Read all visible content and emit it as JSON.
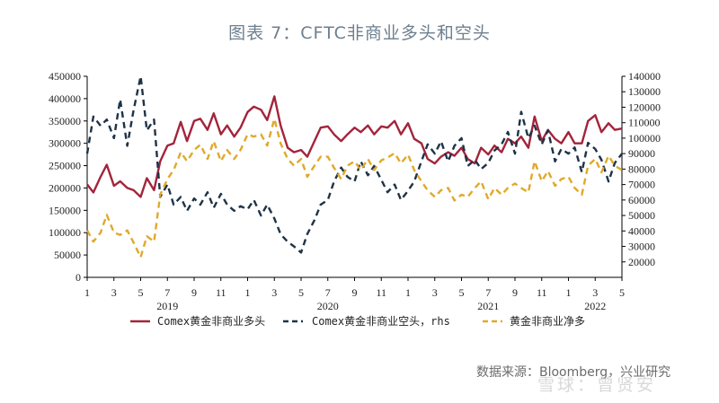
{
  "title": "图表 7：CFTC非商业多头和空头",
  "source": "数据来源：Bloomberg，兴业研究",
  "watermark": "雪球：曾贤安",
  "chart_data": {
    "type": "line",
    "x_range": [
      "2019-01",
      "2022-05"
    ],
    "x_ticks": [
      {
        "label": "1",
        "month": "2019-01"
      },
      {
        "label": "3",
        "month": "2019-03"
      },
      {
        "label": "5",
        "month": "2019-05"
      },
      {
        "label": "7",
        "month": "2019-07"
      },
      {
        "label": "9",
        "month": "2019-09"
      },
      {
        "label": "11",
        "month": "2019-11"
      },
      {
        "label": "1",
        "month": "2020-01"
      },
      {
        "label": "3",
        "month": "2020-03"
      },
      {
        "label": "5",
        "month": "2020-05"
      },
      {
        "label": "7",
        "month": "2020-07"
      },
      {
        "label": "9",
        "month": "2020-09"
      },
      {
        "label": "11",
        "month": "2020-11"
      },
      {
        "label": "1",
        "month": "2021-01"
      },
      {
        "label": "3",
        "month": "2021-03"
      },
      {
        "label": "5",
        "month": "2021-05"
      },
      {
        "label": "7",
        "month": "2021-07"
      },
      {
        "label": "9",
        "month": "2021-09"
      },
      {
        "label": "11",
        "month": "2021-11"
      },
      {
        "label": "1",
        "month": "2022-01"
      },
      {
        "label": "3",
        "month": "2022-03"
      },
      {
        "label": "5",
        "month": "2022-05"
      }
    ],
    "year_labels": [
      {
        "label": "2019",
        "month": "2019-07"
      },
      {
        "label": "2020",
        "month": "2020-07"
      },
      {
        "label": "2021",
        "month": "2021-07"
      },
      {
        "label": "2022",
        "month": "2022-03"
      }
    ],
    "y_left": {
      "min": 0,
      "max": 450000,
      "ticks": [
        0,
        50000,
        100000,
        150000,
        200000,
        250000,
        300000,
        350000,
        400000,
        450000
      ]
    },
    "y_right": {
      "min": 10000,
      "max": 140000,
      "ticks": [
        20000,
        30000,
        40000,
        50000,
        60000,
        70000,
        80000,
        90000,
        100000,
        110000,
        120000,
        130000,
        140000
      ]
    },
    "legend_position": "bottom",
    "grid": false,
    "series": [
      {
        "name": "Comex黄金非商业多头",
        "axis": "left",
        "color": "#a3243b",
        "style": "solid",
        "points": [
          [
            "2019-01",
            208000
          ],
          [
            "2019-01-15",
            190000
          ],
          [
            "2019-02",
            225000
          ],
          [
            "2019-02-15",
            252000
          ],
          [
            "2019-03",
            205000
          ],
          [
            "2019-03-15",
            215000
          ],
          [
            "2019-04",
            200000
          ],
          [
            "2019-04-15",
            195000
          ],
          [
            "2019-05",
            180000
          ],
          [
            "2019-05-15",
            222000
          ],
          [
            "2019-06",
            195000
          ],
          [
            "2019-06-15",
            260000
          ],
          [
            "2019-07",
            295000
          ],
          [
            "2019-07-15",
            300000
          ],
          [
            "2019-08",
            348000
          ],
          [
            "2019-08-15",
            305000
          ],
          [
            "2019-09",
            350000
          ],
          [
            "2019-09-15",
            355000
          ],
          [
            "2019-10",
            330000
          ],
          [
            "2019-10-15",
            367000
          ],
          [
            "2019-11",
            320000
          ],
          [
            "2019-11-15",
            340000
          ],
          [
            "2019-12",
            315000
          ],
          [
            "2019-12-15",
            335000
          ],
          [
            "2020-01",
            370000
          ],
          [
            "2020-01-15",
            382000
          ],
          [
            "2020-02",
            375000
          ],
          [
            "2020-02-15",
            352000
          ],
          [
            "2020-03",
            405000
          ],
          [
            "2020-03-15",
            340000
          ],
          [
            "2020-04",
            290000
          ],
          [
            "2020-04-15",
            280000
          ],
          [
            "2020-05",
            285000
          ],
          [
            "2020-05-15",
            270000
          ],
          [
            "2020-06",
            305000
          ],
          [
            "2020-06-15",
            335000
          ],
          [
            "2020-07",
            338000
          ],
          [
            "2020-07-15",
            320000
          ],
          [
            "2020-08",
            305000
          ],
          [
            "2020-08-15",
            320000
          ],
          [
            "2020-09",
            335000
          ],
          [
            "2020-09-15",
            325000
          ],
          [
            "2020-10",
            340000
          ],
          [
            "2020-10-15",
            320000
          ],
          [
            "2020-11",
            338000
          ],
          [
            "2020-11-15",
            335000
          ],
          [
            "2020-12",
            350000
          ],
          [
            "2020-12-15",
            320000
          ],
          [
            "2021-01",
            345000
          ],
          [
            "2021-01-15",
            310000
          ],
          [
            "2021-02",
            300000
          ],
          [
            "2021-02-15",
            265000
          ],
          [
            "2021-03",
            255000
          ],
          [
            "2021-03-15",
            270000
          ],
          [
            "2021-04",
            280000
          ],
          [
            "2021-04-15",
            272000
          ],
          [
            "2021-05",
            290000
          ],
          [
            "2021-05-15",
            265000
          ],
          [
            "2021-06",
            255000
          ],
          [
            "2021-06-15",
            290000
          ],
          [
            "2021-07",
            275000
          ],
          [
            "2021-07-15",
            295000
          ],
          [
            "2021-08",
            280000
          ],
          [
            "2021-08-15",
            310000
          ],
          [
            "2021-09",
            300000
          ],
          [
            "2021-09-15",
            315000
          ],
          [
            "2021-10",
            290000
          ],
          [
            "2021-10-15",
            360000
          ],
          [
            "2021-11",
            305000
          ],
          [
            "2021-11-15",
            330000
          ],
          [
            "2021-12",
            310000
          ],
          [
            "2021-12-15",
            300000
          ],
          [
            "2022-01",
            325000
          ],
          [
            "2022-01-15",
            300000
          ],
          [
            "2022-02",
            300000
          ],
          [
            "2022-02-15",
            350000
          ],
          [
            "2022-03",
            363000
          ],
          [
            "2022-03-15",
            325000
          ],
          [
            "2022-04",
            345000
          ],
          [
            "2022-04-15",
            330000
          ],
          [
            "2022-05",
            333000
          ]
        ]
      },
      {
        "name": "Comex黄金非商业空头，rhs",
        "axis": "right",
        "color": "#1e3347",
        "style": "dashed",
        "points": [
          [
            "2019-01",
            90000
          ],
          [
            "2019-01-15",
            114000
          ],
          [
            "2019-02",
            108000
          ],
          [
            "2019-02-15",
            112000
          ],
          [
            "2019-03",
            100000
          ],
          [
            "2019-03-15",
            125000
          ],
          [
            "2019-04",
            95000
          ],
          [
            "2019-04-15",
            118000
          ],
          [
            "2019-05",
            140000
          ],
          [
            "2019-05-15",
            105000
          ],
          [
            "2019-06",
            112000
          ],
          [
            "2019-06-15",
            62000
          ],
          [
            "2019-07",
            70000
          ],
          [
            "2019-07-15",
            57000
          ],
          [
            "2019-08",
            62000
          ],
          [
            "2019-08-15",
            53000
          ],
          [
            "2019-09",
            61000
          ],
          [
            "2019-09-15",
            57000
          ],
          [
            "2019-10",
            65000
          ],
          [
            "2019-10-15",
            55000
          ],
          [
            "2019-11",
            64000
          ],
          [
            "2019-11-15",
            57000
          ],
          [
            "2019-12",
            53000
          ],
          [
            "2019-12-15",
            56000
          ],
          [
            "2020-01",
            54000
          ],
          [
            "2020-01-15",
            60000
          ],
          [
            "2020-02",
            50000
          ],
          [
            "2020-02-15",
            57000
          ],
          [
            "2020-03",
            48000
          ],
          [
            "2020-03-15",
            38000
          ],
          [
            "2020-04",
            33000
          ],
          [
            "2020-04-15",
            30000
          ],
          [
            "2020-05",
            26000
          ],
          [
            "2020-05-15",
            38000
          ],
          [
            "2020-06",
            47000
          ],
          [
            "2020-06-15",
            57000
          ],
          [
            "2020-07",
            60000
          ],
          [
            "2020-07-15",
            72000
          ],
          [
            "2020-08",
            81000
          ],
          [
            "2020-08-15",
            75000
          ],
          [
            "2020-09",
            72000
          ],
          [
            "2020-09-15",
            85000
          ],
          [
            "2020-10",
            76000
          ],
          [
            "2020-10-15",
            82000
          ],
          [
            "2020-11",
            73000
          ],
          [
            "2020-11-15",
            65000
          ],
          [
            "2020-12",
            70000
          ],
          [
            "2020-12-15",
            60000
          ],
          [
            "2021-01",
            66000
          ],
          [
            "2021-01-15",
            72000
          ],
          [
            "2021-02",
            85000
          ],
          [
            "2021-02-15",
            96000
          ],
          [
            "2021-03",
            90000
          ],
          [
            "2021-03-15",
            98000
          ],
          [
            "2021-04",
            85000
          ],
          [
            "2021-04-15",
            95000
          ],
          [
            "2021-05",
            100000
          ],
          [
            "2021-05-15",
            82000
          ],
          [
            "2021-06",
            86000
          ],
          [
            "2021-06-15",
            80000
          ],
          [
            "2021-07",
            84000
          ],
          [
            "2021-07-15",
            92000
          ],
          [
            "2021-08",
            96000
          ],
          [
            "2021-08-15",
            104000
          ],
          [
            "2021-09",
            90000
          ],
          [
            "2021-09-15",
            117000
          ],
          [
            "2021-10",
            100000
          ],
          [
            "2021-10-15",
            108000
          ],
          [
            "2021-11",
            96000
          ],
          [
            "2021-11-15",
            105000
          ],
          [
            "2021-12",
            85000
          ],
          [
            "2021-12-15",
            93000
          ],
          [
            "2022-01",
            90000
          ],
          [
            "2022-01-15",
            94000
          ],
          [
            "2022-02",
            78000
          ],
          [
            "2022-02-15",
            97000
          ],
          [
            "2022-03",
            93000
          ],
          [
            "2022-03-15",
            86000
          ],
          [
            "2022-04",
            72000
          ],
          [
            "2022-04-15",
            84000
          ],
          [
            "2022-05",
            90000
          ]
        ]
      },
      {
        "name": "黄金非商业净多",
        "axis": "left",
        "color": "#e0a92a",
        "style": "dashed",
        "points": [
          [
            "2019-01",
            105000
          ],
          [
            "2019-01-15",
            80000
          ],
          [
            "2019-02",
            100000
          ],
          [
            "2019-02-15",
            140000
          ],
          [
            "2019-03",
            100000
          ],
          [
            "2019-03-15",
            95000
          ],
          [
            "2019-04",
            105000
          ],
          [
            "2019-04-15",
            78000
          ],
          [
            "2019-05",
            45000
          ],
          [
            "2019-05-15",
            92000
          ],
          [
            "2019-06",
            80000
          ],
          [
            "2019-06-15",
            185000
          ],
          [
            "2019-07",
            220000
          ],
          [
            "2019-07-15",
            240000
          ],
          [
            "2019-08",
            280000
          ],
          [
            "2019-08-15",
            260000
          ],
          [
            "2019-09",
            285000
          ],
          [
            "2019-09-15",
            297000
          ],
          [
            "2019-10",
            265000
          ],
          [
            "2019-10-15",
            305000
          ],
          [
            "2019-11",
            260000
          ],
          [
            "2019-11-15",
            285000
          ],
          [
            "2019-12",
            265000
          ],
          [
            "2019-12-15",
            285000
          ],
          [
            "2020-01",
            320000
          ],
          [
            "2020-01-15",
            315000
          ],
          [
            "2020-02",
            320000
          ],
          [
            "2020-02-15",
            295000
          ],
          [
            "2020-03",
            355000
          ],
          [
            "2020-03-15",
            300000
          ],
          [
            "2020-04",
            265000
          ],
          [
            "2020-04-15",
            250000
          ],
          [
            "2020-05",
            265000
          ],
          [
            "2020-05-15",
            225000
          ],
          [
            "2020-06",
            250000
          ],
          [
            "2020-06-15",
            270000
          ],
          [
            "2020-07",
            270000
          ],
          [
            "2020-07-15",
            245000
          ],
          [
            "2020-08",
            220000
          ],
          [
            "2020-08-15",
            250000
          ],
          [
            "2020-09",
            260000
          ],
          [
            "2020-09-15",
            240000
          ],
          [
            "2020-10",
            265000
          ],
          [
            "2020-10-15",
            240000
          ],
          [
            "2020-11",
            262000
          ],
          [
            "2020-11-15",
            268000
          ],
          [
            "2020-12",
            278000
          ],
          [
            "2020-12-15",
            255000
          ],
          [
            "2021-01",
            275000
          ],
          [
            "2021-01-15",
            240000
          ],
          [
            "2021-02",
            215000
          ],
          [
            "2021-02-15",
            195000
          ],
          [
            "2021-03",
            180000
          ],
          [
            "2021-03-15",
            195000
          ],
          [
            "2021-04",
            200000
          ],
          [
            "2021-04-15",
            172000
          ],
          [
            "2021-05",
            185000
          ],
          [
            "2021-05-15",
            180000
          ],
          [
            "2021-06",
            200000
          ],
          [
            "2021-06-15",
            215000
          ],
          [
            "2021-07",
            175000
          ],
          [
            "2021-07-15",
            200000
          ],
          [
            "2021-08",
            185000
          ],
          [
            "2021-08-15",
            200000
          ],
          [
            "2021-09",
            210000
          ],
          [
            "2021-09-15",
            200000
          ],
          [
            "2021-10",
            190000
          ],
          [
            "2021-10-15",
            260000
          ],
          [
            "2021-11",
            215000
          ],
          [
            "2021-11-15",
            238000
          ],
          [
            "2021-12",
            205000
          ],
          [
            "2021-12-15",
            220000
          ],
          [
            "2022-01",
            225000
          ],
          [
            "2022-01-15",
            200000
          ],
          [
            "2022-02",
            185000
          ],
          [
            "2022-02-15",
            250000
          ],
          [
            "2022-03",
            265000
          ],
          [
            "2022-03-15",
            235000
          ],
          [
            "2022-04",
            272000
          ],
          [
            "2022-04-15",
            250000
          ],
          [
            "2022-05",
            240000
          ]
        ]
      }
    ]
  }
}
